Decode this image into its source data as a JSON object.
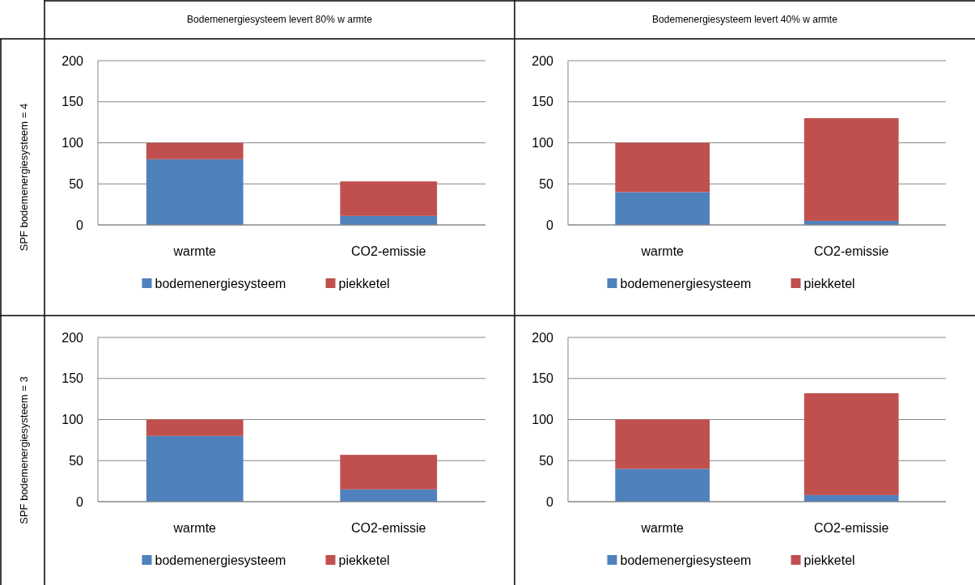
{
  "chart_data": [
    {
      "type": "bar",
      "title": "Bodemenergiesysteem levert 80% w armte",
      "ylabel": "SPF bodemenergiesysteem = 4",
      "categories": [
        "warmte",
        "CO2-emissie"
      ],
      "stacked": true,
      "ylim": [
        0,
        200
      ],
      "yticks": [
        0,
        50,
        100,
        150,
        200
      ],
      "grid": "y",
      "legend": "bottom",
      "series": [
        {
          "name": "bodemenergiesysteem",
          "color": "#4f81bd",
          "values": [
            80,
            11
          ]
        },
        {
          "name": "piekketel",
          "color": "#c0504d",
          "values": [
            20,
            42
          ]
        }
      ]
    },
    {
      "type": "bar",
      "title": "Bodemenergiesysteem levert 40% w armte",
      "categories": [
        "warmte",
        "CO2-emissie"
      ],
      "stacked": true,
      "ylim": [
        0,
        200
      ],
      "yticks": [
        0,
        50,
        100,
        150,
        200
      ],
      "grid": "y",
      "legend": "bottom",
      "series": [
        {
          "name": "bodemenergiesysteem",
          "color": "#4f81bd",
          "values": [
            40,
            5
          ]
        },
        {
          "name": "piekketel",
          "color": "#c0504d",
          "values": [
            60,
            125
          ]
        }
      ]
    },
    {
      "type": "bar",
      "ylabel": "SPF bodemenergiesysteem = 3",
      "categories": [
        "warmte",
        "CO2-emissie"
      ],
      "stacked": true,
      "ylim": [
        0,
        200
      ],
      "yticks": [
        0,
        50,
        100,
        150,
        200
      ],
      "grid": "y",
      "legend": "bottom",
      "series": [
        {
          "name": "bodemenergiesysteem",
          "color": "#4f81bd",
          "values": [
            80,
            15
          ]
        },
        {
          "name": "piekketel",
          "color": "#c0504d",
          "values": [
            20,
            42
          ]
        }
      ]
    },
    {
      "type": "bar",
      "categories": [
        "warmte",
        "CO2-emissie"
      ],
      "stacked": true,
      "ylim": [
        0,
        200
      ],
      "yticks": [
        0,
        50,
        100,
        150,
        200
      ],
      "grid": "y",
      "legend": "bottom",
      "series": [
        {
          "name": "bodemenergiesysteem",
          "color": "#4f81bd",
          "values": [
            40,
            8
          ]
        },
        {
          "name": "piekketel",
          "color": "#c0504d",
          "values": [
            60,
            124
          ]
        }
      ]
    }
  ]
}
